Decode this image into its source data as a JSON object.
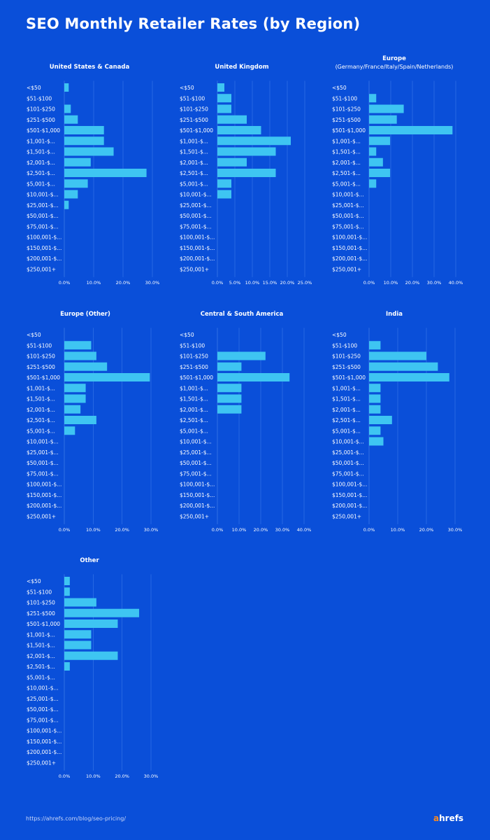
{
  "page": {
    "title": "SEO Monthly Retailer Rates (by Region)",
    "footer_url": "https://ahrefs.com/blog/seo-pricing/",
    "brand": {
      "first_letter": "a",
      "rest": "hrefs",
      "accent_color": "#ff8a1f"
    }
  },
  "colors": {
    "background": "#0a4fd9",
    "bar": "#3ec5f2",
    "gridline": "#3a78e8",
    "text": "#ffffff"
  },
  "chart_data": [
    {
      "type": "bar",
      "orientation": "horizontal",
      "title_lines": [
        "United States & Canada"
      ],
      "categories": [
        "<$50",
        "$51-$100",
        "$101-$250",
        "$251-$500",
        "$501-$1,000",
        "$1,001-$...",
        "$1,501-$...",
        "$2,001-$...",
        "$2,501-$...",
        "$5,001-$...",
        "$10,001-$...",
        "$25,001-$...",
        "$50,001-$...",
        "$75,001-$...",
        "$100,001-$...",
        "$150,001-$...",
        "$200,001-$...",
        "$250,001+"
      ],
      "values": [
        1.5,
        0,
        2.2,
        4.6,
        13.5,
        13.5,
        16.8,
        9.0,
        28.0,
        8.0,
        4.6,
        1.5,
        0,
        0,
        0,
        0,
        0,
        0
      ],
      "xticks": [
        0,
        10,
        20,
        30
      ],
      "tick_labels": [
        "0.0%",
        "10.0%",
        "20.0%",
        "30.0%"
      ],
      "xlim": [
        0,
        30
      ]
    },
    {
      "type": "bar",
      "orientation": "horizontal",
      "title_lines": [
        "United Kingdom"
      ],
      "categories": [
        "<$50",
        "$51-$100",
        "$101-$250",
        "$251-$500",
        "$501-$1,000",
        "$1,001-$...",
        "$1,501-$...",
        "$2,001-$...",
        "$2,501-$...",
        "$5,001-$...",
        "$10,001-$...",
        "$25,001-$...",
        "$50,001-$...",
        "$75,001-$...",
        "$100,001-$...",
        "$150,001-$...",
        "$200,001-$...",
        "$250,001+"
      ],
      "values": [
        2.0,
        4.0,
        4.0,
        8.4,
        12.5,
        21.0,
        16.7,
        8.4,
        16.7,
        4.0,
        4.0,
        0,
        0,
        0,
        0,
        0,
        0,
        0
      ],
      "xticks": [
        0,
        5,
        10,
        15,
        20,
        25
      ],
      "tick_labels": [
        "0.0%",
        "5.0%",
        "10.0%",
        "15.0%",
        "20.0%",
        "25.0%"
      ],
      "xlim": [
        0,
        25
      ]
    },
    {
      "type": "bar",
      "orientation": "horizontal",
      "title_lines": [
        "Europe",
        "(Germany/France/Italy/Spain/Netherlands)"
      ],
      "categories": [
        "<$50",
        "$51-$100",
        "$101-$250",
        "$251-$500",
        "$501-$1,000",
        "$1,001-$...",
        "$1,501-$...",
        "$2,001-$...",
        "$2,501-$...",
        "$5,001-$...",
        "$10,001-$...",
        "$25,001-$...",
        "$50,001-$...",
        "$75,001-$...",
        "$100,001-$...",
        "$150,001-$...",
        "$200,001-$...",
        "$250,001+"
      ],
      "values": [
        0,
        3.3,
        16.0,
        12.8,
        38.5,
        9.7,
        3.3,
        6.4,
        9.7,
        3.3,
        0,
        0,
        0,
        0,
        0,
        0,
        0,
        0
      ],
      "xticks": [
        0,
        10,
        20,
        30,
        40
      ],
      "tick_labels": [
        "0.0%",
        "10.0%",
        "20.0%",
        "30.0%",
        "40.0%"
      ],
      "xlim": [
        0,
        40
      ]
    },
    {
      "type": "bar",
      "orientation": "horizontal",
      "title_lines": [
        "Europe (Other)"
      ],
      "categories": [
        "<$50",
        "$51-$100",
        "$101-$250",
        "$251-$500",
        "$501-$1,000",
        "$1,001-$...",
        "$1,501-$...",
        "$2,001-$...",
        "$2,501-$...",
        "$5,001-$...",
        "$10,001-$...",
        "$25,001-$...",
        "$50,001-$...",
        "$75,001-$...",
        "$100,001-$...",
        "$150,001-$...",
        "$200,001-$...",
        "$250,001+"
      ],
      "values": [
        0,
        9.3,
        11.1,
        14.8,
        29.6,
        7.4,
        7.4,
        5.6,
        11.1,
        3.7,
        0,
        0,
        0,
        0,
        0,
        0,
        0,
        0
      ],
      "xticks": [
        0,
        10,
        20,
        30
      ],
      "tick_labels": [
        "0.0%",
        "10.0%",
        "20.0%",
        "30.0%"
      ],
      "xlim": [
        0,
        30
      ]
    },
    {
      "type": "bar",
      "orientation": "horizontal",
      "title_lines": [
        "Central & South America"
      ],
      "categories": [
        "<$50",
        "$51-$100",
        "$101-$250",
        "$251-$500",
        "$501-$1,000",
        "$1,001-$...",
        "$1,501-$...",
        "$2,001-$...",
        "$2,501-$...",
        "$5,001-$...",
        "$10,001-$...",
        "$25,001-$...",
        "$50,001-$...",
        "$75,001-$...",
        "$100,001-$...",
        "$150,001-$...",
        "$200,001-$...",
        "$250,001+"
      ],
      "values": [
        0,
        0,
        22.2,
        11.1,
        33.3,
        11.1,
        11.1,
        11.1,
        0,
        0,
        0,
        0,
        0,
        0,
        0,
        0,
        0,
        0
      ],
      "xticks": [
        0,
        10,
        20,
        30,
        40
      ],
      "tick_labels": [
        "0.0%",
        "10.0%",
        "20.0%",
        "30.0%",
        "40.0%"
      ],
      "xlim": [
        0,
        40
      ]
    },
    {
      "type": "bar",
      "orientation": "horizontal",
      "title_lines": [
        "India"
      ],
      "categories": [
        "<$50",
        "$51-$100",
        "$101-$250",
        "$251-$500",
        "$501-$1,000",
        "$1,001-$...",
        "$1,501-$...",
        "$2,001-$...",
        "$2,501-$...",
        "$5,001-$...",
        "$10,001-$...",
        "$25,001-$...",
        "$50,001-$...",
        "$75,001-$...",
        "$100,001-$...",
        "$150,001-$...",
        "$200,001-$...",
        "$250,001+"
      ],
      "values": [
        0,
        4.0,
        20.0,
        24.0,
        28.0,
        4.0,
        4.0,
        4.0,
        8.0,
        4.0,
        5.0,
        0,
        0,
        0,
        0,
        0,
        0,
        0
      ],
      "xticks": [
        0,
        10,
        20,
        30
      ],
      "tick_labels": [
        "0.0%",
        "10.0%",
        "20.0%",
        "30.0%"
      ],
      "xlim": [
        0,
        30
      ]
    },
    {
      "type": "bar",
      "orientation": "horizontal",
      "title_lines": [
        "Other"
      ],
      "categories": [
        "<$50",
        "$51-$100",
        "$101-$250",
        "$251-$500",
        "$501-$1,000",
        "$1,001-$...",
        "$1,501-$...",
        "$2,001-$...",
        "$2,501-$...",
        "$5,001-$...",
        "$10,001-$...",
        "$25,001-$...",
        "$50,001-$...",
        "$75,001-$...",
        "$100,001-$...",
        "$150,001-$...",
        "$200,001-$...",
        "$250,001+"
      ],
      "values": [
        1.9,
        1.9,
        11.1,
        25.9,
        18.5,
        9.3,
        9.3,
        18.5,
        1.9,
        0,
        0,
        0,
        0,
        0,
        0,
        0,
        0,
        0
      ],
      "xticks": [
        0,
        10,
        20,
        30
      ],
      "tick_labels": [
        "0.0%",
        "10.0%",
        "20.0%",
        "30.0%"
      ],
      "xlim": [
        0,
        30
      ]
    }
  ]
}
